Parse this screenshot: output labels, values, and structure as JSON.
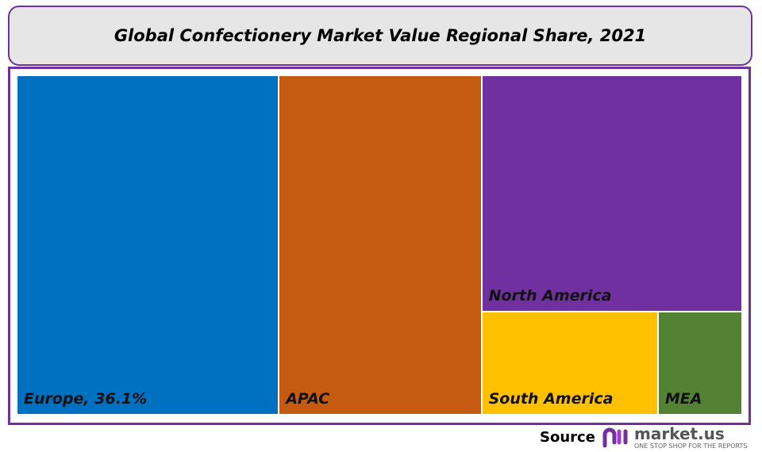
{
  "chart_data": {
    "type": "treemap",
    "title": "Global Confectionery Market Value Regional Share, 2021",
    "unit": "%",
    "items": [
      {
        "name": "Europe",
        "label": "Europe, 36.1%",
        "value": 36.1,
        "color": "#0070c0"
      },
      {
        "name": "APAC",
        "label": "APAC",
        "value": 28.0,
        "color": "#c55a11"
      },
      {
        "name": "North America",
        "label": "North America",
        "value": 25.0,
        "color": "#7030a0"
      },
      {
        "name": "South America",
        "label": "South America",
        "value": 7.4,
        "color": "#ffc000"
      },
      {
        "name": "MEA",
        "label": "MEA",
        "value": 3.5,
        "color": "#548235"
      }
    ]
  },
  "footer": {
    "source_label": "Source",
    "brand": "market.us",
    "tagline": "ONE STOP SHOP FOR THE REPORTS"
  },
  "colors": {
    "accent": "#7030a0",
    "title_bg": "#e6e6e6"
  }
}
